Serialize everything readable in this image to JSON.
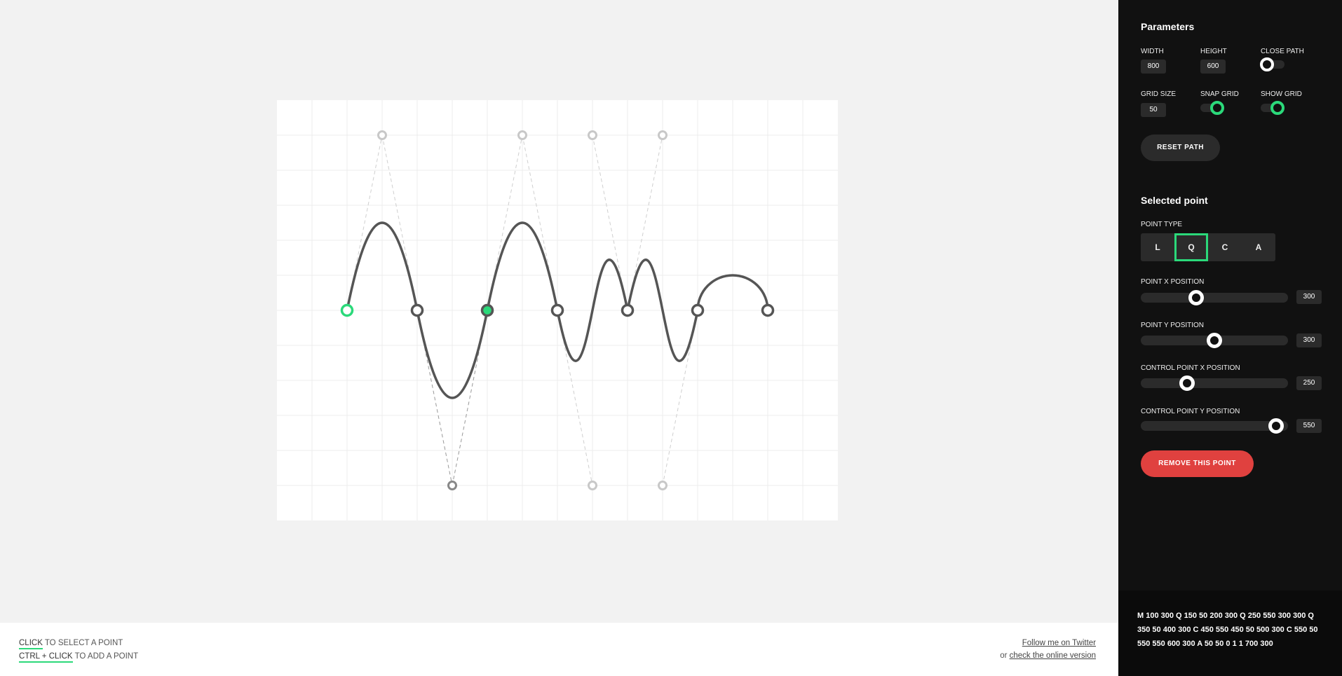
{
  "parameters": {
    "title": "Parameters",
    "width_label": "WIDTH",
    "width_value": "800",
    "height_label": "HEIGHT",
    "height_value": "600",
    "close_path_label": "CLOSE PATH",
    "close_path_on": false,
    "grid_size_label": "GRID SIZE",
    "grid_size_value": "50",
    "snap_grid_label": "SNAP GRID",
    "snap_grid_on": true,
    "show_grid_label": "SHOW GRID",
    "show_grid_on": true,
    "reset_label": "RESET PATH"
  },
  "selected_point": {
    "title": "Selected point",
    "point_type_label": "POINT TYPE",
    "types": [
      "L",
      "Q",
      "C",
      "A"
    ],
    "active_type": "Q",
    "sliders": [
      {
        "label": "POINT X POSITION",
        "value": "300",
        "max": 800
      },
      {
        "label": "POINT Y POSITION",
        "value": "300",
        "max": 600
      },
      {
        "label": "CONTROL POINT X POSITION",
        "value": "250",
        "max": 800
      },
      {
        "label": "CONTROL POINT Y POSITION",
        "value": "550",
        "max": 600
      }
    ],
    "remove_label": "REMOVE THIS POINT"
  },
  "path_code": "M 100 300 Q 150 50 200 300 Q 250 550 300 300 Q 350 50 400 300 C 450 550 450 50 500 300 C 550 50 550 550 600 300 A 50 50 0 1 1 700 300",
  "footer": {
    "click_key": "CLICK",
    "click_text": " TO SELECT A POINT",
    "ctrl_key": "CTRL + CLICK",
    "ctrl_text": " TO ADD A POINT",
    "twitter_link": "Follow me on Twitter",
    "or_text": "or ",
    "online_link": "check the online version"
  },
  "colors": {
    "accent": "#2bd97a",
    "danger": "#e0413f",
    "sidebar_bg": "#111111",
    "path_stroke": "#555555"
  }
}
